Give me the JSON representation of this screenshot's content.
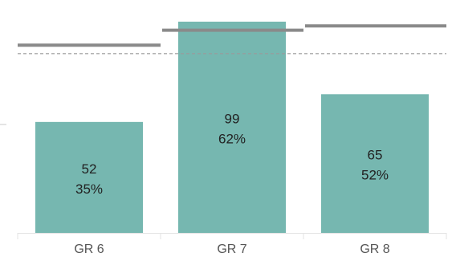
{
  "chart_data": {
    "type": "bar",
    "categories": [
      "GR 6",
      "GR 7",
      "GR 8"
    ],
    "values": [
      52,
      99,
      65
    ],
    "percent_labels": [
      "35%",
      "62%",
      "52%"
    ],
    "value_labels": [
      "52",
      "99",
      "65"
    ],
    "target_lines": [
      88,
      95,
      97
    ],
    "reference_line": 84,
    "ylim": [
      0,
      102
    ],
    "grid": false,
    "legend": "none",
    "title": "",
    "xlabel": "",
    "ylabel": ""
  },
  "colors": {
    "bar": "#76b7b0",
    "target_line": "#8a8a8a",
    "reference_line": "#9a9a9a",
    "axis": "#e3e3e3",
    "left_tick": "#c9c9c9"
  }
}
